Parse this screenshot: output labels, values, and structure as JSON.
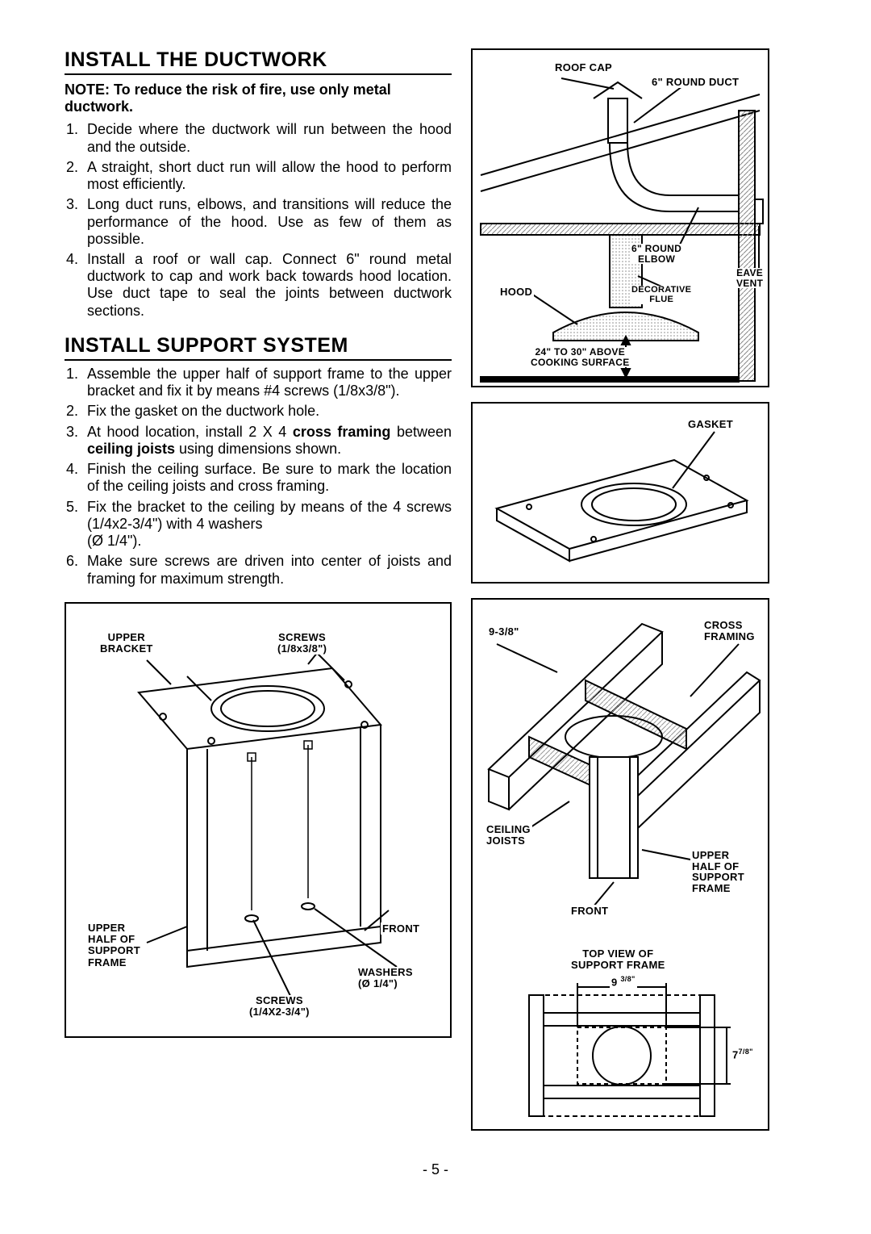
{
  "page_number": "- 5 -",
  "section1": {
    "title": "INSTALL THE DUCTWORK",
    "note": "NOTE: To reduce the risk of fire, use only metal ductwork.",
    "items": [
      "Decide where the ductwork will run between the hood and the outside.",
      "A straight, short duct run will allow the hood to perform most efficiently.",
      "Long duct runs, elbows, and transitions will reduce the performance of the hood. Use as few of them as possible.",
      "Install a roof or wall cap. Connect 6\" round metal ductwork to cap and work back towards hood location. Use duct tape to seal the joints between ductwork sections."
    ]
  },
  "section2": {
    "title": "INSTALL SUPPORT SYSTEM",
    "items": [
      "Assemble the upper half of support frame to the upper bracket and fix it by means #4 screws (1/8x3/8\").",
      "Fix the gasket on the ductwork hole.",
      "At hood location, install 2 X 4 <b>cross framing</b> between <b>ceiling joists</b> using dimensions shown.",
      "Finish the ceiling surface. Be sure to mark the location of the ceiling joists and cross framing.",
      "Fix the bracket to the ceiling by means of the 4 screws (1/4x2-3/4\") with 4 washers<br>(Ø 1/4\").",
      "Make sure screws are driven into center of joists and framing for maximum strength."
    ]
  },
  "fig_ductwork": {
    "labels": {
      "roof_cap": "ROOF CAP",
      "round_duct6": "6\" ROUND DUCT",
      "round_elbow6": "6\" ROUND ELBOW",
      "hood": "HOOD",
      "decorative_flue": "DECORATIVE FLUE",
      "eave_vent": "EAVE VENT",
      "clearance": "24\" TO 30\" ABOVE COOKING SURFACE"
    }
  },
  "fig_gasket": {
    "label": "GASKET"
  },
  "fig_framing": {
    "labels": {
      "dim938": "9-3/8\"",
      "cross_framing": "CROSS FRAMING",
      "ceiling_joists": "CEILING JOISTS",
      "upper_half": "UPPER HALF OF SUPPORT FRAME",
      "front": "FRONT",
      "top_view_title": "TOP VIEW OF SUPPORT FRAME",
      "dim_938b": "9 ",
      "dim_938b_sup": "3/8\"",
      "dim_778": "7",
      "dim_778_sup": "7/8\""
    }
  },
  "fig_bracket": {
    "labels": {
      "upper_bracket": "UPPER BRACKET",
      "screws_small": "SCREWS (1/8x3/8\")",
      "upper_half": "UPPER HALF OF SUPPORT FRAME",
      "front": "FRONT",
      "washers": "WASHERS (Ø 1/4\")",
      "screws_big": "SCREWS (1/4X2-3/4\")"
    }
  },
  "colors": {
    "hatch": "#b8b8b8",
    "line": "#000000"
  }
}
